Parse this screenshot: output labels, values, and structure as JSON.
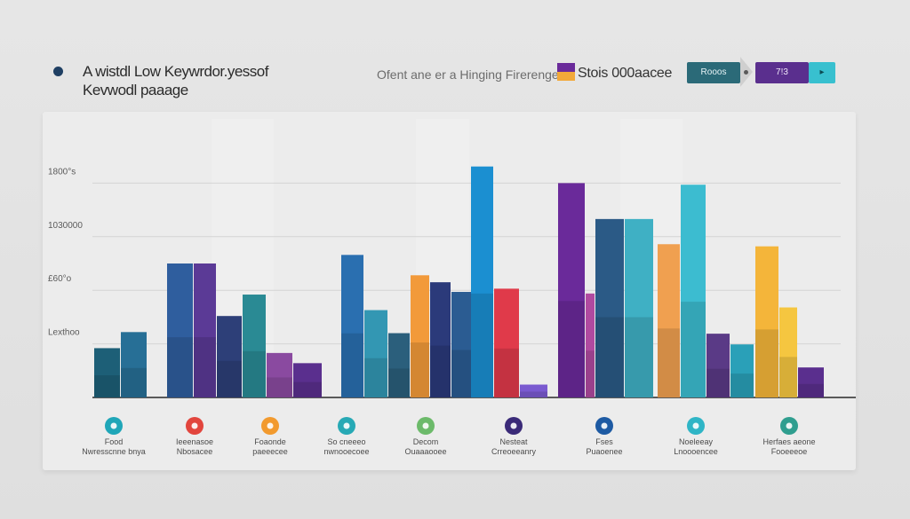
{
  "header": {
    "title_line1": "A wistdl Low Keywrdor.yessof",
    "title_line2": "Kevwodl paaage",
    "subtitle": "Ofent ane er a Hinging Firerenges",
    "legend_label": "Stois 000aacee",
    "control_a": "Rooos",
    "control_b": "7!3",
    "control_c": "▸",
    "colors": {
      "dark_navy": "#1f3f63",
      "teal": "#2b6a78",
      "purple": "#5a2f8e",
      "cyan": "#38c0cf"
    }
  },
  "chart_data": {
    "type": "bar",
    "title": "A wistdl Low Keywrdor.yessof",
    "xlabel": "",
    "ylabel": "",
    "y_ticks": [
      {
        "label": "Lexthoo",
        "value": 1
      },
      {
        "label": "£60°o",
        "value": 2
      },
      {
        "label": "1030000",
        "value": 3
      },
      {
        "label": "1800°s",
        "value": 4
      }
    ],
    "ylim": [
      0,
      5
    ],
    "grid": true,
    "categories": [
      {
        "label1": "Food",
        "label2": "Nwresscnne bnya",
        "icon_color": "#1fa6b8"
      },
      {
        "label1": "Ieeenasoe",
        "label2": "Nbosacee",
        "icon_color": "#e2453d"
      },
      {
        "label1": "Foaonde",
        "label2": "paeeecee",
        "icon_color": "#f29a2e"
      },
      {
        "label1": "So cneeeo",
        "label2": "nwnooecoee",
        "icon_color": "#27a9b5"
      },
      {
        "label1": "Decom",
        "label2": "Ouaaaooee",
        "icon_color": "#6cba6a"
      },
      {
        "label1": "Nesteat",
        "label2": "Crreoeeanry",
        "icon_color": "#3a2a78"
      },
      {
        "label1": "Fses",
        "label2": "Puaoenee",
        "icon_color": "#1d5aa3"
      },
      {
        "label1": "Noeleeay",
        "label2": "Lnoooencee",
        "icon_color": "#2fb5c6"
      },
      {
        "label1": "Herfaes aeone",
        "label2": "Fooeeeoe",
        "icon_color": "#2f9e8f"
      }
    ],
    "bars": [
      {
        "group": 0,
        "value": 0.92,
        "color": "#1d5f77"
      },
      {
        "group": 0,
        "value": 1.22,
        "color": "#276f96"
      },
      {
        "group": 1,
        "value": 2.5,
        "color": "#2f5e9e"
      },
      {
        "group": 1,
        "value": 2.5,
        "color": "#5b3a96"
      },
      {
        "group": 1,
        "value": 1.52,
        "color": "#2d3f78"
      },
      {
        "group": 1,
        "value": 1.92,
        "color": "#2a8a94"
      },
      {
        "group": 1,
        "value": 0.83,
        "color": "#8a4aa0"
      },
      {
        "group": 1,
        "value": 0.64,
        "color": "#5a2f8e"
      },
      {
        "group": 2,
        "value": 2.66,
        "color": "#2a6fb0"
      },
      {
        "group": 2,
        "value": 1.63,
        "color": "#3397b3"
      },
      {
        "group": 2,
        "value": 1.2,
        "color": "#2b5f7c"
      },
      {
        "group": 2,
        "value": 2.28,
        "color": "#f29a3a"
      },
      {
        "group": 2,
        "value": 2.15,
        "color": "#2b3a7a"
      },
      {
        "group": 2,
        "value": 1.97,
        "color": "#2b5c92"
      },
      {
        "group": 3,
        "value": 4.31,
        "color": "#1b8fd1"
      },
      {
        "group": 3,
        "value": 2.03,
        "color": "#e03a4a"
      },
      {
        "group": 3,
        "value": 0.24,
        "color": "#7a5ad0"
      },
      {
        "group": 4,
        "value": 4.0,
        "color": "#6a2a9a"
      },
      {
        "group": 4,
        "value": 1.94,
        "color": "#b04aa0"
      },
      {
        "group": 4,
        "value": 3.33,
        "color": "#2b5a86"
      },
      {
        "group": 4,
        "value": 3.33,
        "color": "#3fb0c4"
      },
      {
        "group": 5,
        "value": 2.86,
        "color": "#f0a050"
      },
      {
        "group": 5,
        "value": 3.97,
        "color": "#3cbcd0"
      },
      {
        "group": 5,
        "value": 1.19,
        "color": "#5a3a86"
      },
      {
        "group": 5,
        "value": 0.99,
        "color": "#2aa0b8"
      },
      {
        "group": 6,
        "value": 2.82,
        "color": "#f4b53a"
      },
      {
        "group": 6,
        "value": 1.68,
        "color": "#f5c640"
      },
      {
        "group": 6,
        "value": 0.56,
        "color": "#5a2f8e"
      }
    ]
  }
}
